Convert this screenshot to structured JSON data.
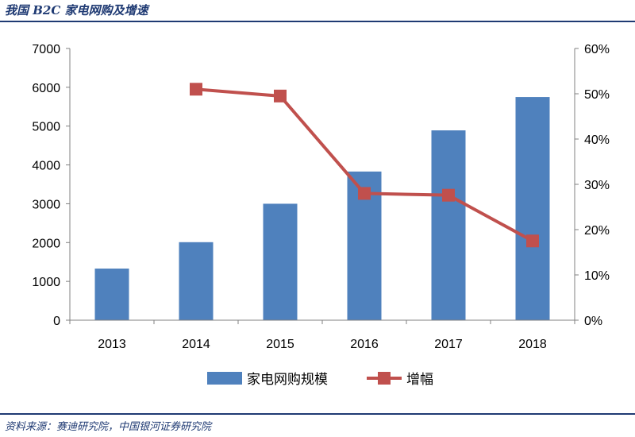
{
  "header": {
    "title": "我国 B2C 家电网购及增速"
  },
  "footer": {
    "source": "资料来源：赛迪研究院，中国银河证券研究院"
  },
  "colors": {
    "bar": "#4f81bd",
    "line": "#c0504d",
    "heading": "#1f3a73"
  },
  "chart_data": {
    "type": "bar+line",
    "title": "",
    "categories": [
      "2013",
      "2014",
      "2015",
      "2016",
      "2017",
      "2018"
    ],
    "series": [
      {
        "name": "家电网购规模",
        "type": "bar",
        "axis": "left",
        "values": [
          1330,
          2010,
          3000,
          3830,
          4890,
          5750
        ]
      },
      {
        "name": "增幅",
        "type": "line",
        "axis": "right",
        "values": [
          null,
          0.51,
          0.495,
          0.28,
          0.276,
          0.175
        ]
      }
    ],
    "y_left": {
      "min": 0,
      "max": 7000,
      "ticks": [
        "0",
        "1000",
        "2000",
        "3000",
        "4000",
        "5000",
        "6000",
        "7000"
      ]
    },
    "y_right": {
      "min": 0,
      "max": 0.6,
      "ticks": [
        "0%",
        "10%",
        "20%",
        "30%",
        "40%",
        "50%",
        "60%"
      ]
    },
    "grid": false,
    "legend": "bottom"
  }
}
